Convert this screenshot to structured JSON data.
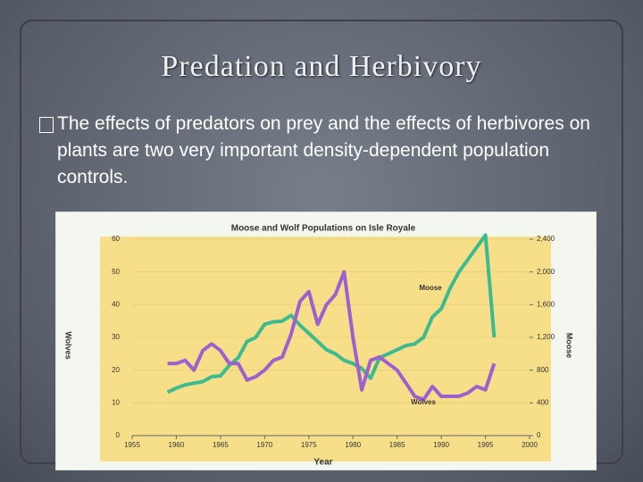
{
  "slide": {
    "title": "Predation and Herbivory",
    "bullet": "The effects of predators on prey and the effects of herbivores on plants are two very important density-dependent population controls."
  },
  "chart_data": {
    "type": "line",
    "title": "Moose and Wolf Populations on Isle Royale",
    "x_label": "Year",
    "y_label": "Wolves",
    "y2_label": "Moose",
    "x": [
      1959,
      1960,
      1961,
      1962,
      1963,
      1964,
      1965,
      1966,
      1967,
      1968,
      1969,
      1970,
      1971,
      1972,
      1973,
      1974,
      1975,
      1976,
      1977,
      1978,
      1979,
      1980,
      1981,
      1982,
      1983,
      1984,
      1985,
      1986,
      1987,
      1988,
      1989,
      1990,
      1991,
      1992,
      1993,
      1994,
      1995,
      1996
    ],
    "xlim": [
      1955,
      2000
    ],
    "xticks": [
      1955,
      1960,
      1965,
      1970,
      1975,
      1980,
      1985,
      1990,
      1995,
      2000
    ],
    "ylim": [
      0,
      60
    ],
    "yticks": [
      0,
      10,
      20,
      30,
      40,
      50,
      60
    ],
    "y2lim": [
      0,
      2400
    ],
    "y2ticks": [
      0,
      400,
      800,
      {
        "value": 1200,
        "label": "1,200"
      },
      {
        "value": 1600,
        "label": "1,600"
      },
      {
        "value": 2000,
        "label": "2,000"
      },
      {
        "value": 2400,
        "label": "2,400"
      }
    ],
    "grid": true,
    "background": "#f7df8a",
    "series": [
      {
        "name": "Moose",
        "color": "#3dbb8e",
        "axis": "y2",
        "values": [
          530,
          580,
          620,
          640,
          660,
          720,
          730,
          860,
          950,
          1150,
          1200,
          1360,
          1390,
          1400,
          1470,
          1350,
          1250,
          1150,
          1050,
          1000,
          920,
          880,
          820,
          700,
          950,
          1000,
          1050,
          1100,
          1120,
          1200,
          1450,
          1550,
          1800,
          2000,
          2150,
          2300,
          2450,
          1200
        ]
      },
      {
        "name": "Wolves",
        "color": "#9e5fcf",
        "values": [
          22,
          22,
          23,
          20,
          26,
          28,
          26,
          22,
          22,
          17,
          18,
          20,
          23,
          24,
          31,
          41,
          44,
          34,
          40,
          43,
          50,
          30,
          14,
          23,
          24,
          22,
          20,
          16,
          12,
          11,
          15,
          12,
          12,
          12,
          13,
          15,
          14,
          22
        ]
      }
    ]
  }
}
